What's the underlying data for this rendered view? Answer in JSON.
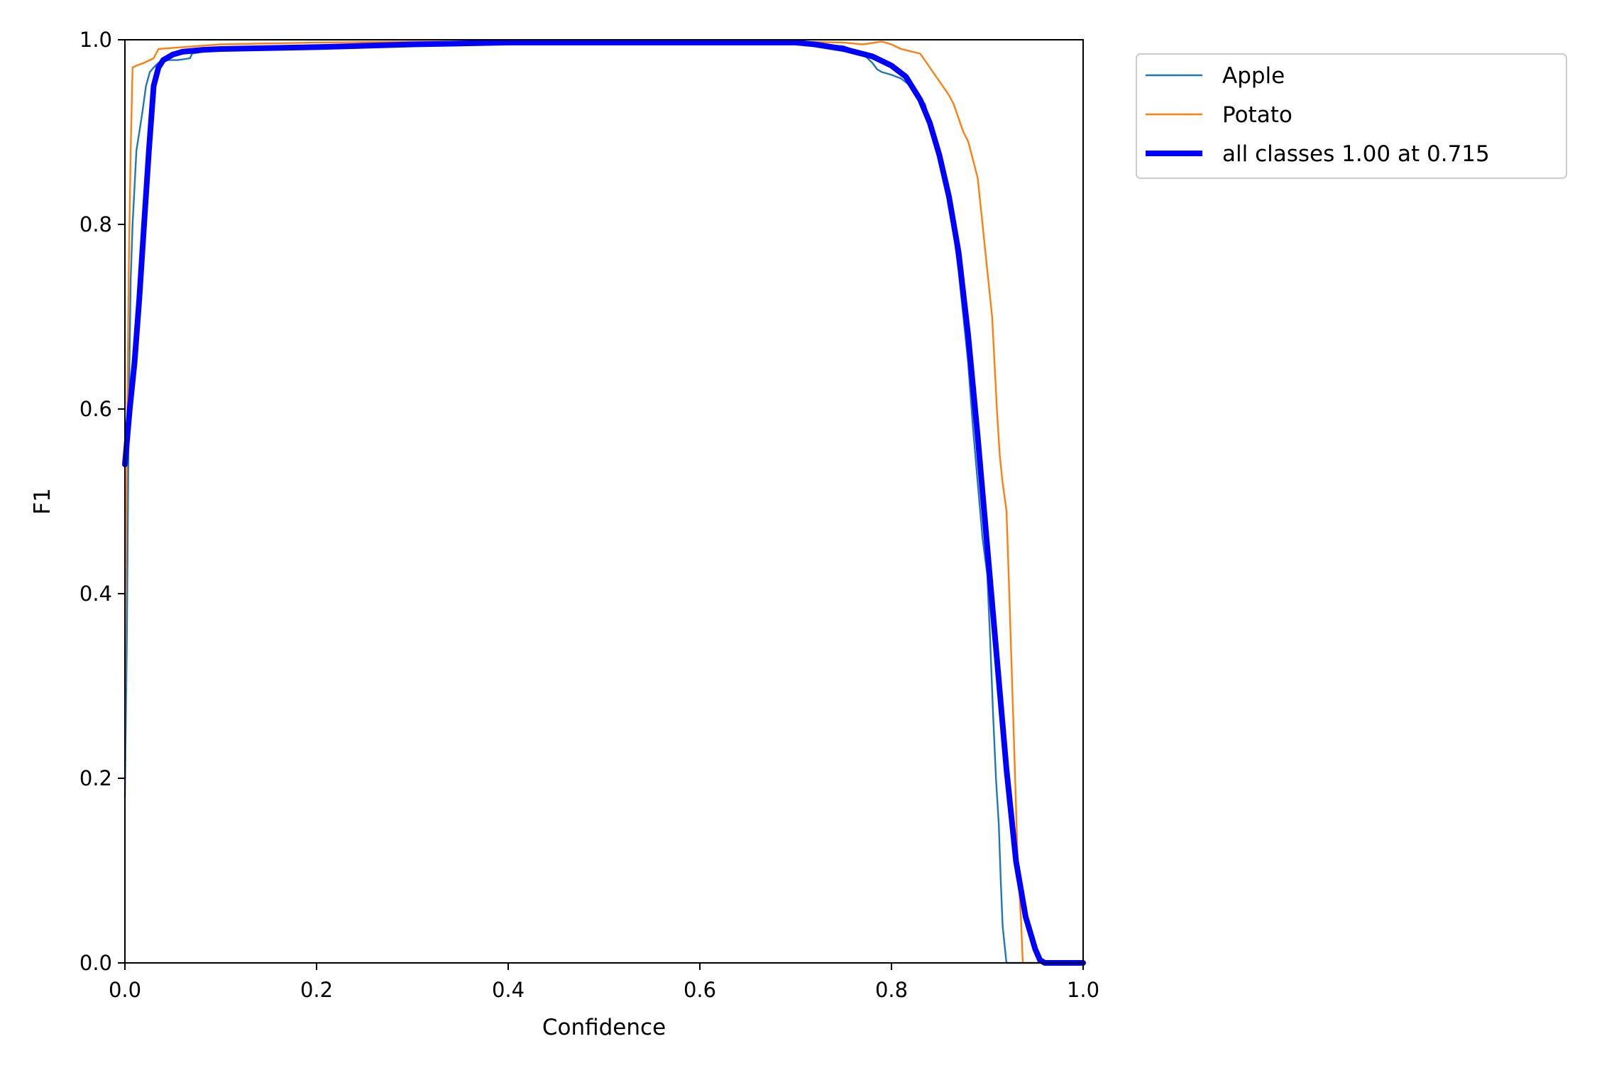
{
  "chart_data": {
    "type": "line",
    "title": "",
    "xlabel": "Confidence",
    "ylabel": "F1",
    "xlim": [
      0.0,
      1.0
    ],
    "ylim": [
      0.0,
      1.0
    ],
    "x_ticks": [
      "0.0",
      "0.2",
      "0.4",
      "0.6",
      "0.8",
      "1.0"
    ],
    "y_ticks": [
      "0.0",
      "0.2",
      "0.4",
      "0.6",
      "0.8",
      "1.0"
    ],
    "grid": false,
    "legend_position": "outside-top-right",
    "series": [
      {
        "name": "Apple",
        "color": "#1f77b4",
        "style": "thin",
        "points": [
          [
            0.0,
            0.18
          ],
          [
            0.002,
            0.35
          ],
          [
            0.004,
            0.6
          ],
          [
            0.006,
            0.74
          ],
          [
            0.008,
            0.8
          ],
          [
            0.01,
            0.84
          ],
          [
            0.012,
            0.88
          ],
          [
            0.015,
            0.9
          ],
          [
            0.018,
            0.92
          ],
          [
            0.022,
            0.95
          ],
          [
            0.026,
            0.965
          ],
          [
            0.03,
            0.97
          ],
          [
            0.035,
            0.975
          ],
          [
            0.045,
            0.978
          ],
          [
            0.055,
            0.978
          ],
          [
            0.068,
            0.98
          ],
          [
            0.07,
            0.985
          ],
          [
            0.1,
            0.99
          ],
          [
            0.2,
            0.992
          ],
          [
            0.3,
            0.995
          ],
          [
            0.4,
            0.997
          ],
          [
            0.5,
            0.997
          ],
          [
            0.6,
            0.997
          ],
          [
            0.7,
            0.997
          ],
          [
            0.75,
            0.993
          ],
          [
            0.77,
            0.985
          ],
          [
            0.78,
            0.975
          ],
          [
            0.785,
            0.968
          ],
          [
            0.79,
            0.965
          ],
          [
            0.8,
            0.962
          ],
          [
            0.81,
            0.958
          ],
          [
            0.82,
            0.95
          ],
          [
            0.828,
            0.94
          ],
          [
            0.835,
            0.93
          ],
          [
            0.84,
            0.91
          ],
          [
            0.845,
            0.89
          ],
          [
            0.85,
            0.87
          ],
          [
            0.855,
            0.85
          ],
          [
            0.86,
            0.83
          ],
          [
            0.865,
            0.79
          ],
          [
            0.87,
            0.75
          ],
          [
            0.875,
            0.7
          ],
          [
            0.88,
            0.65
          ],
          [
            0.885,
            0.58
          ],
          [
            0.89,
            0.52
          ],
          [
            0.895,
            0.46
          ],
          [
            0.9,
            0.42
          ],
          [
            0.903,
            0.35
          ],
          [
            0.906,
            0.27
          ],
          [
            0.909,
            0.2
          ],
          [
            0.912,
            0.15
          ],
          [
            0.914,
            0.09
          ],
          [
            0.916,
            0.04
          ],
          [
            0.918,
            0.02
          ],
          [
            0.92,
            0.0
          ],
          [
            1.0,
            0.0
          ]
        ]
      },
      {
        "name": "Potato",
        "color": "#ff7f0e",
        "style": "thin",
        "points": [
          [
            0.0,
            0.3
          ],
          [
            0.002,
            0.55
          ],
          [
            0.004,
            0.75
          ],
          [
            0.006,
            0.88
          ],
          [
            0.008,
            0.97
          ],
          [
            0.012,
            0.972
          ],
          [
            0.02,
            0.975
          ],
          [
            0.03,
            0.98
          ],
          [
            0.035,
            0.99
          ],
          [
            0.06,
            0.992
          ],
          [
            0.1,
            0.995
          ],
          [
            0.2,
            0.997
          ],
          [
            0.3,
            0.998
          ],
          [
            0.4,
            0.998
          ],
          [
            0.5,
            0.998
          ],
          [
            0.6,
            0.998
          ],
          [
            0.7,
            0.998
          ],
          [
            0.75,
            0.997
          ],
          [
            0.77,
            0.995
          ],
          [
            0.79,
            0.998
          ],
          [
            0.8,
            0.995
          ],
          [
            0.81,
            0.99
          ],
          [
            0.83,
            0.985
          ],
          [
            0.84,
            0.97
          ],
          [
            0.85,
            0.955
          ],
          [
            0.86,
            0.94
          ],
          [
            0.865,
            0.93
          ],
          [
            0.87,
            0.915
          ],
          [
            0.875,
            0.9
          ],
          [
            0.88,
            0.89
          ],
          [
            0.885,
            0.87
          ],
          [
            0.89,
            0.85
          ],
          [
            0.895,
            0.8
          ],
          [
            0.9,
            0.75
          ],
          [
            0.905,
            0.7
          ],
          [
            0.91,
            0.6
          ],
          [
            0.913,
            0.55
          ],
          [
            0.916,
            0.52
          ],
          [
            0.92,
            0.49
          ],
          [
            0.923,
            0.4
          ],
          [
            0.926,
            0.3
          ],
          [
            0.929,
            0.2
          ],
          [
            0.932,
            0.1
          ],
          [
            0.935,
            0.05
          ],
          [
            0.937,
            0.0
          ],
          [
            1.0,
            0.0
          ]
        ]
      },
      {
        "name": "all classes 1.00 at 0.715",
        "color": "#0000ff",
        "style": "thick",
        "points": [
          [
            0.0,
            0.54
          ],
          [
            0.005,
            0.6
          ],
          [
            0.01,
            0.65
          ],
          [
            0.015,
            0.72
          ],
          [
            0.02,
            0.8
          ],
          [
            0.025,
            0.88
          ],
          [
            0.03,
            0.95
          ],
          [
            0.035,
            0.97
          ],
          [
            0.04,
            0.978
          ],
          [
            0.05,
            0.984
          ],
          [
            0.06,
            0.987
          ],
          [
            0.08,
            0.989
          ],
          [
            0.1,
            0.99
          ],
          [
            0.2,
            0.992
          ],
          [
            0.3,
            0.995
          ],
          [
            0.4,
            0.997
          ],
          [
            0.5,
            0.997
          ],
          [
            0.6,
            0.997
          ],
          [
            0.7,
            0.997
          ],
          [
            0.72,
            0.995
          ],
          [
            0.75,
            0.99
          ],
          [
            0.78,
            0.982
          ],
          [
            0.8,
            0.972
          ],
          [
            0.815,
            0.96
          ],
          [
            0.83,
            0.935
          ],
          [
            0.84,
            0.91
          ],
          [
            0.85,
            0.875
          ],
          [
            0.86,
            0.83
          ],
          [
            0.87,
            0.77
          ],
          [
            0.88,
            0.68
          ],
          [
            0.89,
            0.57
          ],
          [
            0.9,
            0.45
          ],
          [
            0.91,
            0.33
          ],
          [
            0.92,
            0.21
          ],
          [
            0.93,
            0.11
          ],
          [
            0.94,
            0.05
          ],
          [
            0.95,
            0.015
          ],
          [
            0.955,
            0.003
          ],
          [
            0.96,
            0.0
          ],
          [
            1.0,
            0.0
          ]
        ]
      }
    ]
  }
}
